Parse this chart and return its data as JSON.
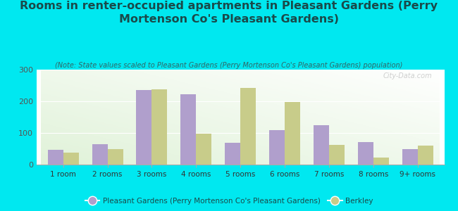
{
  "title": "Rooms in renter-occupied apartments in Pleasant Gardens (Perry\nMortenson Co's Pleasant Gardens)",
  "subtitle": "(Note: State values scaled to Pleasant Gardens (Perry Mortenson Co's Pleasant Gardens) population)",
  "categories": [
    "1 room",
    "2 rooms",
    "3 rooms",
    "4 rooms",
    "5 rooms",
    "6 rooms",
    "7 rooms",
    "8 rooms",
    "9+ rooms"
  ],
  "pleasant_gardens": [
    47,
    65,
    235,
    223,
    70,
    110,
    125,
    72,
    50
  ],
  "berkley": [
    37,
    50,
    238,
    98,
    242,
    198,
    63,
    22,
    60
  ],
  "pleasant_color": "#b09fcc",
  "berkley_color": "#c8cc8a",
  "bg_outer": "#00e8f0",
  "ylim": [
    0,
    300
  ],
  "yticks": [
    0,
    100,
    200,
    300
  ],
  "title_fontsize": 11.5,
  "subtitle_fontsize": 7,
  "tick_fontsize": 7.5,
  "title_color": "#1a4a4a",
  "subtitle_color": "#336666",
  "legend_label_pg": "Pleasant Gardens (Perry Mortenson Co's Pleasant Gardens)",
  "legend_label_bk": "Berkley",
  "watermark": "City-Data.com"
}
